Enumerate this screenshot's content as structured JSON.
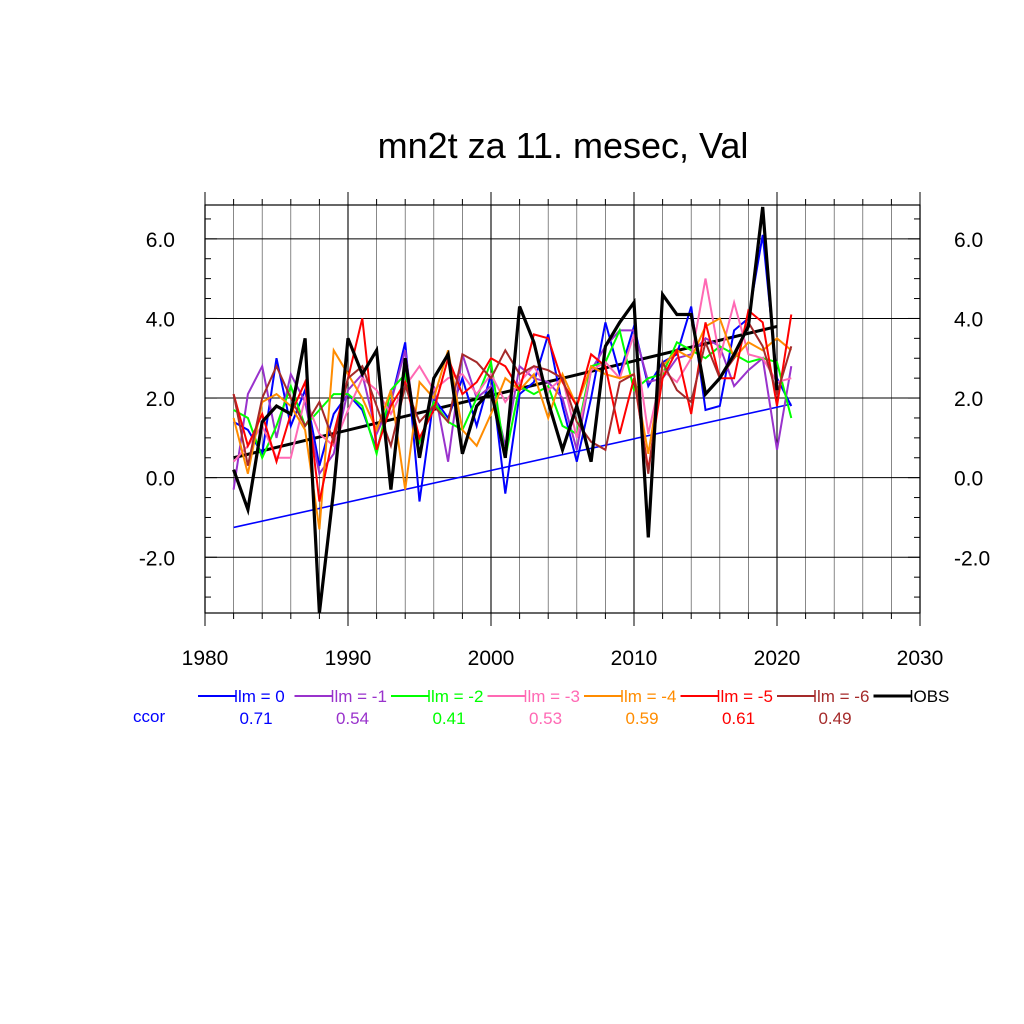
{
  "chart_data": {
    "type": "line",
    "title": "mn2t za 11. mesec, Val",
    "xlabel": "",
    "ylabel": "",
    "xlim": [
      1980,
      2030
    ],
    "ylim": [
      -3.4,
      6.85
    ],
    "x_ticks": [
      1980,
      1990,
      2000,
      2010,
      2020,
      2030
    ],
    "x_tick_labels": [
      "1980",
      "1990",
      "2000",
      "2010",
      "2020",
      "2030"
    ],
    "y_ticks": [
      -2,
      0,
      2,
      4,
      6
    ],
    "y_tick_labels": [
      "-2.0",
      "0.0",
      "2.0",
      "4.0",
      "6.0"
    ],
    "grid": true,
    "legend_position": "bottom",
    "ccor_label": "ccor",
    "series": [
      {
        "name": "lm = 0",
        "color": "#0000ff",
        "ccor": "0.71",
        "x": [
          1982,
          1983,
          1984,
          1985,
          1986,
          1987,
          1988,
          1989,
          1990,
          1991,
          1992,
          1993,
          1994,
          1995,
          1996,
          1997,
          1998,
          1999,
          2000,
          2001,
          2002,
          2003,
          2004,
          2005,
          2006,
          2007,
          2008,
          2009,
          2010,
          2011,
          2012,
          2013,
          2014,
          2015,
          2016,
          2017,
          2018,
          2019,
          2020,
          2021
        ],
        "values": [
          1.4,
          1.2,
          0.6,
          3.0,
          1.3,
          2.2,
          0.3,
          1.6,
          2.1,
          1.7,
          0.7,
          1.9,
          3.4,
          -0.6,
          2.0,
          1.5,
          2.5,
          1.3,
          2.6,
          -0.4,
          2.1,
          2.4,
          3.6,
          1.8,
          0.4,
          2.0,
          3.9,
          2.6,
          3.8,
          2.3,
          2.9,
          3.1,
          4.3,
          1.7,
          1.8,
          3.7,
          4.0,
          6.1,
          2.5,
          1.8
        ]
      },
      {
        "name": "lm = -1",
        "color": "#9932cc",
        "ccor": "0.54",
        "x": [
          1982,
          1983,
          1984,
          1985,
          1986,
          1987,
          1988,
          1989,
          1990,
          1991,
          1992,
          1993,
          1994,
          1995,
          1996,
          1997,
          1998,
          1999,
          2000,
          2001,
          2002,
          2003,
          2004,
          2005,
          2006,
          2007,
          2008,
          2009,
          2010,
          2011,
          2012,
          2013,
          2014,
          2015,
          2016,
          2017,
          2018,
          2019,
          2020,
          2021
        ],
        "values": [
          -0.3,
          2.1,
          2.8,
          1.0,
          2.6,
          1.9,
          0.1,
          0.6,
          2.2,
          2.6,
          1.1,
          1.9,
          3.2,
          0.5,
          2.3,
          0.4,
          3.1,
          2.0,
          2.3,
          0.8,
          2.8,
          2.5,
          2.4,
          2.0,
          0.7,
          2.7,
          3.3,
          3.7,
          3.7,
          2.4,
          2.5,
          3.0,
          3.1,
          3.5,
          3.3,
          2.3,
          2.7,
          3.0,
          0.7,
          2.8
        ]
      },
      {
        "name": "lm = -2",
        "color": "#00ff00",
        "ccor": "0.41",
        "x": [
          1982,
          1983,
          1984,
          1985,
          1986,
          1987,
          1988,
          1989,
          1990,
          1991,
          1992,
          1993,
          1994,
          1995,
          1996,
          1997,
          1998,
          1999,
          2000,
          2001,
          2002,
          2003,
          2004,
          2005,
          2006,
          2007,
          2008,
          2009,
          2010,
          2011,
          2012,
          2013,
          2014,
          2015,
          2016,
          2017,
          2018,
          2019,
          2020,
          2021
        ],
        "values": [
          1.7,
          1.5,
          0.5,
          1.3,
          2.3,
          1.3,
          1.7,
          2.1,
          2.1,
          1.8,
          0.6,
          2.2,
          2.6,
          0.9,
          1.9,
          1.4,
          1.2,
          2.0,
          2.9,
          0.5,
          2.3,
          2.1,
          2.3,
          1.3,
          1.1,
          2.8,
          2.9,
          3.7,
          2.2,
          2.5,
          2.6,
          3.4,
          3.2,
          3.0,
          3.3,
          3.1,
          2.9,
          3.0,
          2.9,
          1.5
        ]
      },
      {
        "name": "lm = -3",
        "color": "#ff69b4",
        "ccor": "0.53",
        "x": [
          1982,
          1983,
          1984,
          1985,
          1986,
          1987,
          1988,
          1989,
          1990,
          1991,
          1992,
          1993,
          1994,
          1995,
          1996,
          1997,
          1998,
          1999,
          2000,
          2001,
          2002,
          2003,
          2004,
          2005,
          2006,
          2007,
          2008,
          2009,
          2010,
          2011,
          2012,
          2013,
          2014,
          2015,
          2016,
          2017,
          2018,
          2019,
          2020,
          2021
        ],
        "values": [
          0.4,
          0.8,
          1.3,
          0.5,
          0.5,
          2.0,
          1.1,
          0.8,
          1.7,
          2.5,
          2.2,
          1.6,
          2.3,
          2.8,
          2.2,
          2.5,
          2.6,
          2.1,
          2.6,
          1.9,
          2.4,
          2.8,
          2.2,
          2.5,
          1.0,
          2.7,
          2.9,
          2.5,
          3.6,
          1.1,
          2.7,
          2.4,
          3.0,
          5.0,
          3.0,
          4.4,
          3.1,
          3.0,
          2.4,
          2.5
        ]
      },
      {
        "name": "lm = -4",
        "color": "#ff8c00",
        "ccor": "0.59",
        "x": [
          1982,
          1983,
          1984,
          1985,
          1986,
          1987,
          1988,
          1989,
          1990,
          1991,
          1992,
          1993,
          1994,
          1995,
          1996,
          1997,
          1998,
          1999,
          2000,
          2001,
          2002,
          2003,
          2004,
          2005,
          2006,
          2007,
          2008,
          2009,
          2010,
          2011,
          2012,
          2013,
          2014,
          2015,
          2016,
          2017,
          2018,
          2019,
          2020,
          2021
        ],
        "values": [
          1.5,
          0.1,
          1.9,
          2.1,
          1.8,
          1.2,
          -1.3,
          3.2,
          2.6,
          2.0,
          1.2,
          2.2,
          -0.3,
          2.4,
          2.0,
          3.2,
          1.2,
          0.8,
          1.6,
          2.5,
          2.2,
          2.6,
          1.5,
          2.6,
          1.8,
          2.8,
          2.6,
          2.5,
          2.6,
          0.6,
          2.8,
          3.2,
          3.0,
          3.8,
          4.0,
          3.0,
          3.4,
          3.2,
          3.5,
          3.2
        ]
      },
      {
        "name": "lm = -5",
        "color": "#ff0000",
        "ccor": "0.61",
        "x": [
          1982,
          1983,
          1984,
          1985,
          1986,
          1987,
          1988,
          1989,
          1990,
          1991,
          1992,
          1993,
          1994,
          1995,
          1996,
          1997,
          1998,
          1999,
          2000,
          2001,
          2002,
          2003,
          2004,
          2005,
          2006,
          2007,
          2008,
          2009,
          2010,
          2011,
          2012,
          2013,
          2014,
          2015,
          2016,
          2017,
          2018,
          2019,
          2020,
          2021
        ],
        "values": [
          2.1,
          0.8,
          1.6,
          0.4,
          1.6,
          2.4,
          -0.6,
          1.1,
          2.5,
          4.0,
          0.7,
          1.8,
          2.4,
          1.0,
          1.7,
          3.0,
          2.1,
          2.4,
          3.0,
          2.8,
          2.2,
          3.6,
          3.5,
          2.4,
          1.8,
          3.1,
          2.8,
          1.1,
          2.5,
          0.2,
          2.5,
          3.2,
          1.6,
          3.9,
          2.5,
          2.5,
          4.2,
          3.9,
          1.8,
          4.1
        ]
      },
      {
        "name": "lm = -6",
        "color": "#a52a2a",
        "ccor": "0.49",
        "x": [
          1982,
          1983,
          1984,
          1985,
          1986,
          1987,
          1988,
          1989,
          1990,
          1991,
          1992,
          1993,
          1994,
          1995,
          1996,
          1997,
          1998,
          1999,
          2000,
          2001,
          2002,
          2003,
          2004,
          2005,
          2006,
          2007,
          2008,
          2009,
          2010,
          2011,
          2012,
          2013,
          2014,
          2015,
          2016,
          2017,
          2018,
          2019,
          2020,
          2021
        ],
        "values": [
          2.1,
          0.3,
          2.0,
          2.8,
          2.0,
          1.3,
          1.9,
          0.9,
          2.5,
          2.8,
          1.8,
          0.8,
          2.3,
          1.4,
          1.8,
          1.4,
          3.1,
          2.9,
          2.5,
          3.2,
          2.6,
          2.8,
          2.7,
          2.5,
          1.4,
          0.9,
          0.7,
          2.4,
          2.6,
          0.1,
          2.9,
          2.2,
          1.9,
          3.4,
          2.5,
          3.0,
          3.9,
          3.3,
          2.1,
          3.3
        ]
      },
      {
        "name": "OBS",
        "color": "#000000",
        "ccor": "",
        "x": [
          1982,
          1983,
          1984,
          1985,
          1986,
          1987,
          1988,
          1989,
          1990,
          1991,
          1992,
          1993,
          1994,
          1995,
          1996,
          1997,
          1998,
          1999,
          2000,
          2001,
          2002,
          2003,
          2004,
          2005,
          2006,
          2007,
          2008,
          2009,
          2010,
          2011,
          2012,
          2013,
          2014,
          2015,
          2016,
          2017,
          2018,
          2019,
          2020
        ],
        "values": [
          0.2,
          -0.8,
          1.4,
          1.8,
          1.6,
          3.5,
          -3.4,
          -0.3,
          3.5,
          2.6,
          3.2,
          -0.3,
          3.0,
          0.5,
          2.5,
          3.1,
          0.6,
          1.8,
          2.2,
          0.5,
          4.3,
          3.4,
          1.9,
          0.7,
          1.8,
          0.4,
          3.3,
          3.9,
          4.4,
          -1.5,
          4.6,
          4.1,
          4.1,
          2.1,
          2.5,
          3.1,
          3.8,
          6.8,
          2.2
        ]
      }
    ],
    "trend_lines": [
      {
        "name": "OBS trend",
        "color": "#000000",
        "x": [
          1982,
          2020
        ],
        "values": [
          0.5,
          3.8
        ]
      },
      {
        "name": "lm = 0 trend",
        "color": "#0000ff",
        "x": [
          1982,
          2021
        ],
        "values": [
          -1.25,
          1.85
        ]
      }
    ]
  }
}
